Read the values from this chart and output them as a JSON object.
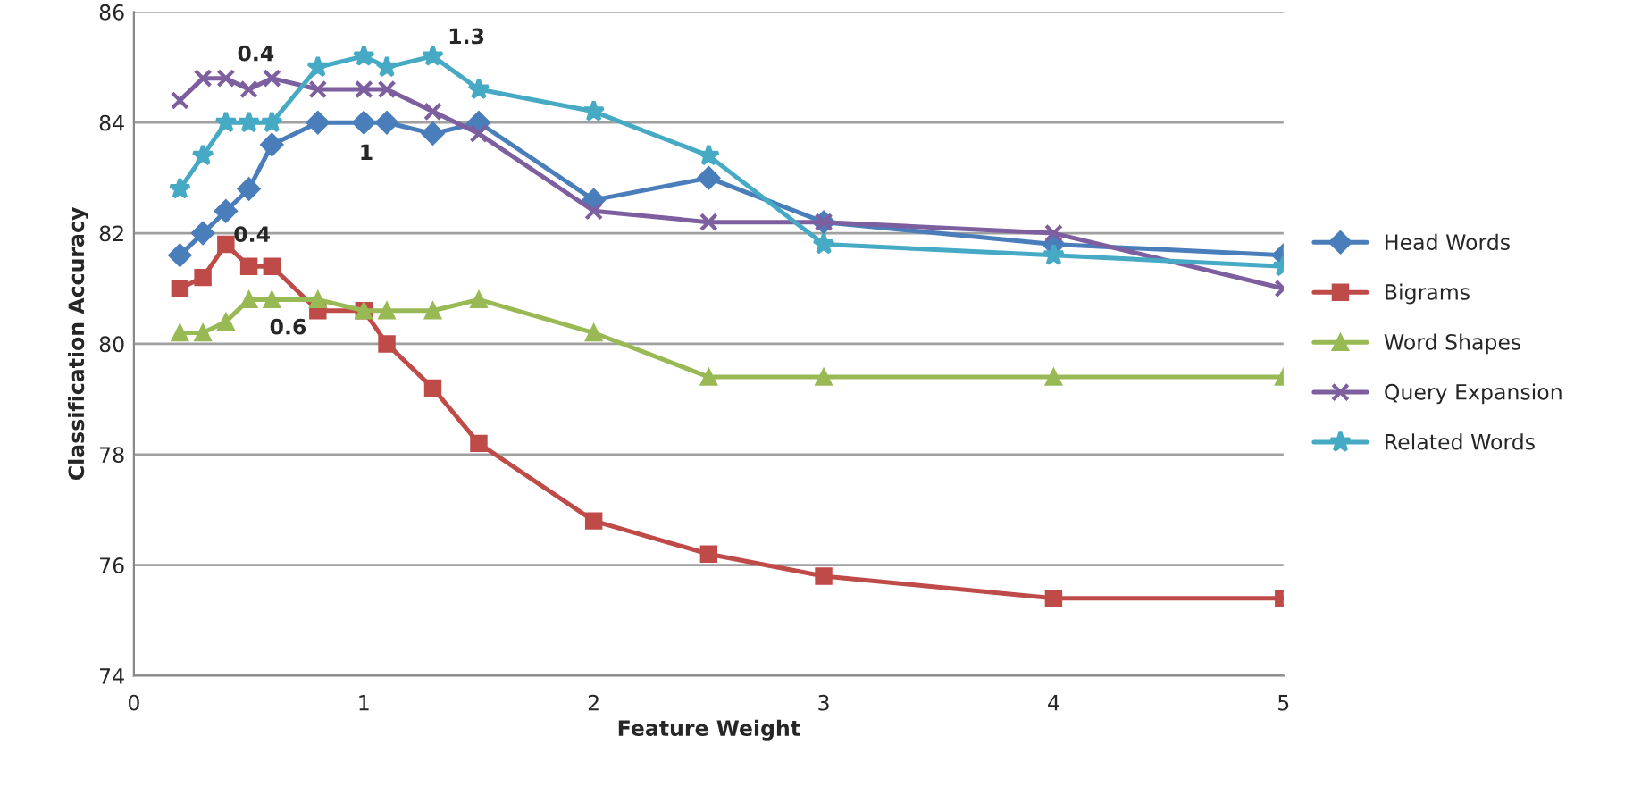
{
  "chart_data": {
    "type": "line",
    "xlabel": "Feature Weight",
    "ylabel": "Classification Accuracy",
    "x": [
      0.2,
      0.3,
      0.4,
      0.5,
      0.6,
      0.8,
      1,
      1.1,
      1.3,
      1.5,
      2,
      2.5,
      3,
      4,
      5
    ],
    "series": [
      {
        "name": "Head Words",
        "color": "#4a7ebb",
        "marker": "diamond",
        "values": [
          81.6,
          82.0,
          82.4,
          82.8,
          83.6,
          84.0,
          84.0,
          84.0,
          83.8,
          84.0,
          82.6,
          83.0,
          82.2,
          81.8,
          81.6
        ]
      },
      {
        "name": "Bigrams",
        "color": "#be4b48",
        "marker": "square",
        "values": [
          81.0,
          81.2,
          81.8,
          81.4,
          81.4,
          80.6,
          80.6,
          80.0,
          79.2,
          78.2,
          76.8,
          76.2,
          75.8,
          75.4,
          75.4
        ]
      },
      {
        "name": "Word Shapes",
        "color": "#98b954",
        "marker": "triangle",
        "values": [
          80.2,
          80.2,
          80.4,
          80.8,
          80.8,
          80.8,
          80.6,
          80.6,
          80.6,
          80.8,
          80.2,
          79.4,
          79.4,
          79.4,
          79.4
        ]
      },
      {
        "name": "Query Expansion",
        "color": "#7d5fa0",
        "marker": "cross",
        "values": [
          84.4,
          84.8,
          84.8,
          84.6,
          84.8,
          84.6,
          84.6,
          84.6,
          84.2,
          83.8,
          82.4,
          82.2,
          82.2,
          82.0,
          81.0
        ]
      },
      {
        "name": "Related Words",
        "color": "#46aac5",
        "marker": "star",
        "values": [
          82.8,
          83.4,
          84.0,
          84.0,
          84.0,
          85.0,
          85.2,
          85.0,
          85.2,
          84.6,
          84.2,
          83.4,
          81.8,
          81.6,
          81.4
        ]
      }
    ],
    "xlim": [
      0,
      5
    ],
    "xticks": [
      0,
      1,
      2,
      3,
      4,
      5
    ],
    "ylim": [
      74,
      86
    ],
    "yticks": [
      74,
      76,
      78,
      80,
      82,
      84,
      86
    ],
    "grid": "y",
    "legend": "right",
    "line_style": "solid",
    "annotations": [
      {
        "text": "0.4",
        "x": 0.6,
        "y": 84.8
      },
      {
        "text": "1.3",
        "x": 1.3,
        "y": 85.2
      },
      {
        "text": "1",
        "x": 1,
        "y": 84.0
      },
      {
        "text": "0.4",
        "x": 0.4,
        "y": 81.8
      },
      {
        "text": "0.6",
        "x": 0.6,
        "y": 80.8
      }
    ]
  }
}
